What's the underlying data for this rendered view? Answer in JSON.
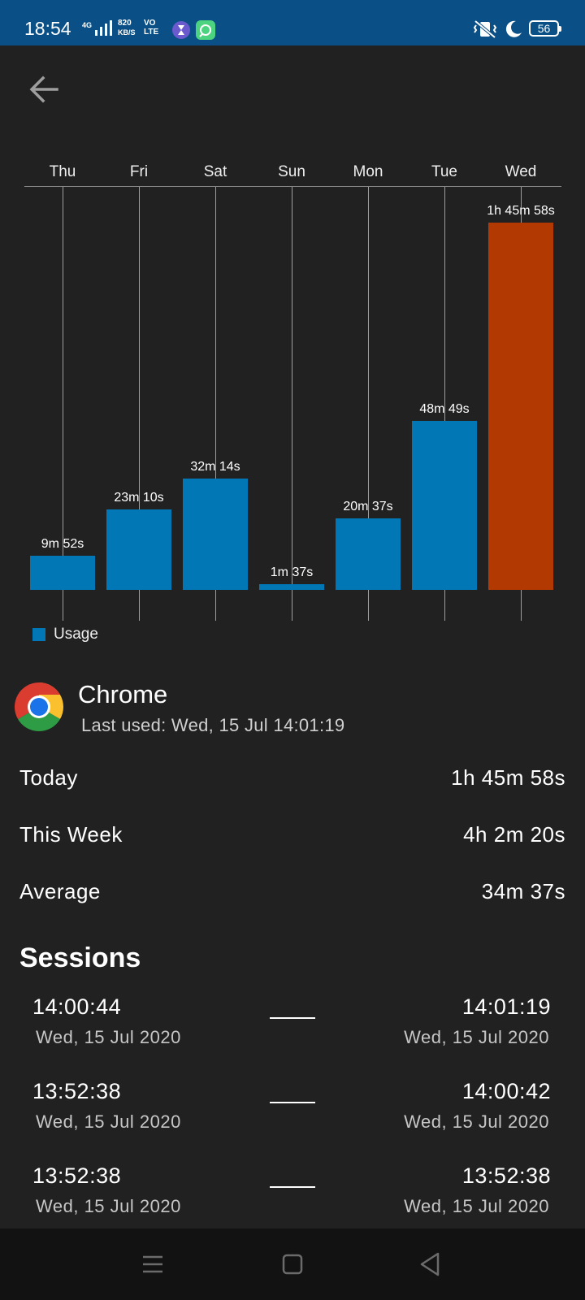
{
  "status_bar": {
    "time": "18:54",
    "network": "4G",
    "speed_value": "820",
    "speed_unit": "KB/S",
    "volte_top": "VO",
    "volte_bottom": "LTE",
    "battery": "56"
  },
  "header": {
    "back_icon": "arrow-left-icon"
  },
  "chart_data": {
    "type": "bar",
    "categories": [
      "Thu",
      "Fri",
      "Sat",
      "Sun",
      "Mon",
      "Tue",
      "Wed"
    ],
    "series": [
      {
        "name": "Usage",
        "values": [
          9.87,
          23.17,
          32.23,
          1.62,
          20.62,
          48.82,
          105.97
        ],
        "unit": "minutes",
        "labels": [
          "9m 52s",
          "23m 10s",
          "32m 14s",
          "1m 37s",
          "20m 37s",
          "48m 49s",
          "1h 45m 58s"
        ]
      }
    ],
    "highlight_index": 6,
    "colors": {
      "bar": "#0277b5",
      "highlight": "#b23a02"
    },
    "legend": "bottom-left",
    "ylim": [
      0,
      105.97
    ]
  },
  "app": {
    "name": "Chrome",
    "icon": "chrome-icon",
    "last_used": "Last used: Wed, 15 Jul 14:01:19"
  },
  "stats": [
    {
      "label": "Today",
      "value": "1h 45m 58s"
    },
    {
      "label": "This Week",
      "value": "4h 2m 20s"
    },
    {
      "label": "Average",
      "value": "34m 37s"
    }
  ],
  "sessions": {
    "title": "Sessions",
    "items": [
      {
        "start_time": "14:00:44",
        "start_date": "Wed, 15 Jul 2020",
        "end_time": "14:01:19",
        "end_date": "Wed, 15 Jul 2020"
      },
      {
        "start_time": "13:52:38",
        "start_date": "Wed, 15 Jul 2020",
        "end_time": "14:00:42",
        "end_date": "Wed, 15 Jul 2020"
      },
      {
        "start_time": "13:52:38",
        "start_date": "Wed, 15 Jul 2020",
        "end_time": "13:52:38",
        "end_date": "Wed, 15 Jul 2020"
      }
    ]
  },
  "nav_bar": {
    "icons": [
      "menu-icon",
      "home-square-icon",
      "back-triangle-icon"
    ]
  }
}
